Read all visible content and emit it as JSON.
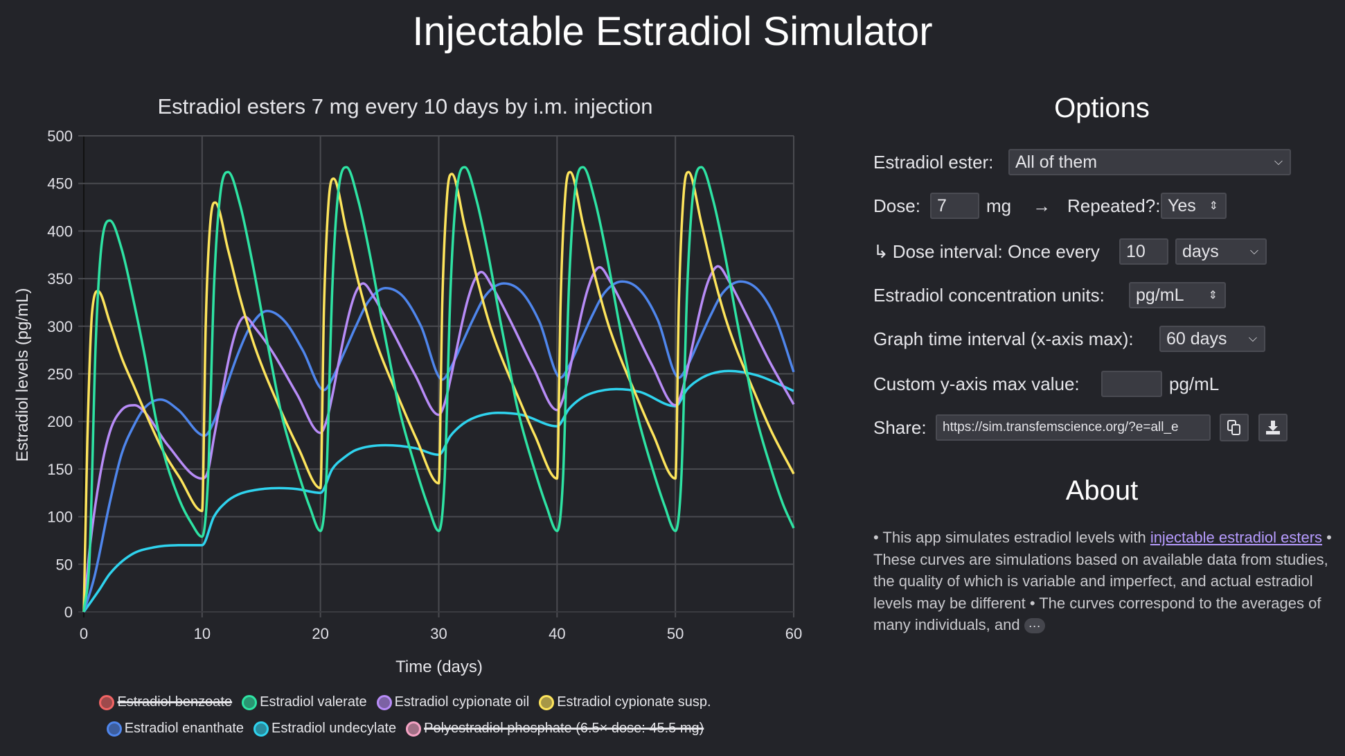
{
  "page": {
    "title": "Injectable Estradiol Simulator"
  },
  "options": {
    "heading": "Options",
    "ester_label": "Estradiol ester:",
    "ester_value": "All of them",
    "dose_label": "Dose:",
    "dose_value": "7",
    "dose_unit": "mg",
    "arrow": "→",
    "repeated_label": "Repeated?:",
    "repeated_value": "Yes",
    "interval_prefix": "↳",
    "interval_label": "Dose interval: Once every",
    "interval_value": "10",
    "interval_unit": "days",
    "units_label": "Estradiol concentration units:",
    "units_value": "pg/mL",
    "graph_label": "Graph time interval (x-axis max):",
    "graph_value": "60 days",
    "ymax_label": "Custom y-axis max value:",
    "ymax_value": "",
    "ymax_unit": "pg/mL",
    "share_label": "Share:",
    "share_url": "https://sim.transfemscience.org/?e=all_e",
    "copy_icon": "copy-icon",
    "download_icon": "download-icon"
  },
  "about": {
    "heading": "About",
    "text_1": "• This app simulates estradiol levels with ",
    "link": "injectable estradiol esters",
    "text_2": " • These curves are simulations based on available data from studies, the quality of which is variable and imperfect, and actual estradiol levels may be different • The curves correspond to the averages of many individuals, and ",
    "more": "···"
  },
  "chart_data": {
    "type": "line",
    "title": "Estradiol esters 7 mg every 10 days by i.m. injection",
    "xlabel": "Time (days)",
    "ylabel": "Estradiol levels (pg/mL)",
    "xlim": [
      0,
      60
    ],
    "ylim": [
      0,
      500
    ],
    "xticks": [
      "0",
      "10",
      "20",
      "30",
      "40",
      "50",
      "60"
    ],
    "yticks": [
      "0",
      "50",
      "100",
      "150",
      "200",
      "250",
      "300",
      "350",
      "400",
      "450",
      "500"
    ],
    "grid": true,
    "legend_position": "bottom",
    "series": [
      {
        "name": "Estradiol benzoate",
        "color": "#f06464",
        "hidden": true,
        "points": []
      },
      {
        "name": "Estradiol valerate",
        "color": "#2ee3a3",
        "hidden": false,
        "points": [
          [
            0,
            0
          ],
          [
            0.5,
            60
          ],
          [
            1,
            280
          ],
          [
            1.5,
            385
          ],
          [
            2.2,
            411
          ],
          [
            3.2,
            381
          ],
          [
            4.2,
            327
          ],
          [
            5.2,
            266
          ],
          [
            5.9,
            215
          ],
          [
            6.7,
            169
          ],
          [
            8.1,
            117
          ],
          [
            9.1,
            93
          ],
          [
            10,
            79
          ],
          [
            10.5,
            140
          ],
          [
            11,
            340
          ],
          [
            11.5,
            435
          ],
          [
            12.2,
            462
          ],
          [
            13.2,
            428
          ],
          [
            14.2,
            370
          ],
          [
            15.2,
            303
          ],
          [
            15.9,
            258
          ],
          [
            16.7,
            208
          ],
          [
            18.1,
            147
          ],
          [
            19.1,
            110
          ],
          [
            20,
            85
          ],
          [
            20.5,
            140
          ],
          [
            21,
            340
          ],
          [
            21.5,
            440
          ],
          [
            22.2,
            467
          ],
          [
            23.2,
            432
          ],
          [
            24.2,
            374
          ],
          [
            25.2,
            306
          ],
          [
            25.9,
            261
          ],
          [
            26.7,
            211
          ],
          [
            28.1,
            149
          ],
          [
            29.1,
            111
          ],
          [
            30,
            85
          ],
          [
            30.5,
            140
          ],
          [
            31,
            340
          ],
          [
            31.5,
            440
          ],
          [
            32.2,
            467
          ],
          [
            33.2,
            432
          ],
          [
            34.2,
            374
          ],
          [
            35.2,
            306
          ],
          [
            35.9,
            261
          ],
          [
            36.7,
            211
          ],
          [
            38.1,
            149
          ],
          [
            39.1,
            111
          ],
          [
            40,
            85
          ],
          [
            40.5,
            140
          ],
          [
            41,
            340
          ],
          [
            41.5,
            440
          ],
          [
            42.2,
            467
          ],
          [
            43.2,
            432
          ],
          [
            44.2,
            374
          ],
          [
            45.2,
            306
          ],
          [
            45.9,
            261
          ],
          [
            46.7,
            211
          ],
          [
            48.1,
            149
          ],
          [
            49.1,
            111
          ],
          [
            50,
            85
          ],
          [
            50.5,
            140
          ],
          [
            51,
            340
          ],
          [
            51.5,
            440
          ],
          [
            52.2,
            467
          ],
          [
            53.2,
            432
          ],
          [
            54.2,
            374
          ],
          [
            55.2,
            306
          ],
          [
            55.9,
            261
          ],
          [
            56.7,
            211
          ],
          [
            58.1,
            150
          ],
          [
            59.1,
            113
          ],
          [
            60,
            88
          ]
        ]
      },
      {
        "name": "Estradiol cypionate oil",
        "color": "#b88cf7",
        "hidden": false,
        "points": [
          [
            0,
            0
          ],
          [
            0.5,
            66
          ],
          [
            1.3,
            138
          ],
          [
            2.2,
            189
          ],
          [
            3.2,
            212
          ],
          [
            4.3,
            217
          ],
          [
            5.2,
            209
          ],
          [
            7.1,
            175
          ],
          [
            10,
            140
          ],
          [
            10.5,
            148
          ],
          [
            11,
            183
          ],
          [
            11.5,
            217
          ],
          [
            12,
            250
          ],
          [
            12.5,
            279
          ],
          [
            13,
            300
          ],
          [
            13.6,
            310
          ],
          [
            14.5,
            298
          ],
          [
            16,
            272
          ],
          [
            18,
            229
          ],
          [
            20,
            188
          ],
          [
            20.5,
            200
          ],
          [
            21,
            227
          ],
          [
            21.5,
            259
          ],
          [
            22,
            290
          ],
          [
            22.5,
            317
          ],
          [
            23,
            336
          ],
          [
            23.6,
            345
          ],
          [
            24.5,
            331
          ],
          [
            26,
            297
          ],
          [
            28,
            249
          ],
          [
            30,
            207
          ],
          [
            30.5,
            219
          ],
          [
            31,
            245
          ],
          [
            31.5,
            275
          ],
          [
            32,
            305
          ],
          [
            32.5,
            330
          ],
          [
            33,
            348
          ],
          [
            33.6,
            357
          ],
          [
            34.5,
            342
          ],
          [
            36,
            307
          ],
          [
            38,
            256
          ],
          [
            40,
            212
          ],
          [
            40.5,
            224
          ],
          [
            41,
            250
          ],
          [
            41.5,
            280
          ],
          [
            42,
            310
          ],
          [
            42.5,
            335
          ],
          [
            43,
            353
          ],
          [
            43.6,
            362
          ],
          [
            44.5,
            347
          ],
          [
            46,
            311
          ],
          [
            48,
            260
          ],
          [
            50,
            217
          ],
          [
            50.5,
            229
          ],
          [
            51,
            254
          ],
          [
            51.5,
            283
          ],
          [
            52,
            312
          ],
          [
            52.5,
            337
          ],
          [
            53,
            354
          ],
          [
            53.6,
            363
          ],
          [
            54.5,
            348
          ],
          [
            56,
            312
          ],
          [
            58,
            262
          ],
          [
            60,
            218
          ]
        ]
      },
      {
        "name": "Estradiol cypionate susp.",
        "color": "#fde45c",
        "hidden": false,
        "points": [
          [
            0,
            0
          ],
          [
            0.3,
            180
          ],
          [
            0.7,
            315
          ],
          [
            1.2,
            337
          ],
          [
            2.2,
            304
          ],
          [
            3.2,
            267
          ],
          [
            4.2,
            238
          ],
          [
            5,
            215
          ],
          [
            6.7,
            169
          ],
          [
            8.1,
            141
          ],
          [
            10,
            106
          ],
          [
            10.3,
            300
          ],
          [
            10.7,
            410
          ],
          [
            11.1,
            430
          ],
          [
            12.2,
            380
          ],
          [
            13.2,
            330
          ],
          [
            14.2,
            288
          ],
          [
            15,
            260
          ],
          [
            16.7,
            210
          ],
          [
            18.1,
            173
          ],
          [
            20,
            130
          ],
          [
            20.3,
            320
          ],
          [
            20.7,
            432
          ],
          [
            21.1,
            455
          ],
          [
            22.2,
            400
          ],
          [
            23.2,
            347
          ],
          [
            24.2,
            302
          ],
          [
            25,
            273
          ],
          [
            26.7,
            222
          ],
          [
            28.1,
            182
          ],
          [
            30,
            135
          ],
          [
            30.3,
            325
          ],
          [
            30.7,
            437
          ],
          [
            31.1,
            460
          ],
          [
            32.2,
            405
          ],
          [
            33.2,
            352
          ],
          [
            34.2,
            306
          ],
          [
            35,
            277
          ],
          [
            36.7,
            226
          ],
          [
            38.1,
            186
          ],
          [
            40,
            140
          ],
          [
            40.3,
            327
          ],
          [
            40.7,
            439
          ],
          [
            41.1,
            462
          ],
          [
            42.2,
            407
          ],
          [
            43.2,
            353
          ],
          [
            44.2,
            307
          ],
          [
            45,
            278
          ],
          [
            46.7,
            227
          ],
          [
            48.1,
            187
          ],
          [
            50,
            140
          ],
          [
            50.3,
            327
          ],
          [
            50.7,
            439
          ],
          [
            51.1,
            462
          ],
          [
            52.2,
            408
          ],
          [
            53.2,
            355
          ],
          [
            54.2,
            310
          ],
          [
            55,
            281
          ],
          [
            56.7,
            230
          ],
          [
            58.1,
            190
          ],
          [
            60,
            145
          ]
        ]
      },
      {
        "name": "Estradiol enanthate",
        "color": "#4f86ec",
        "hidden": false,
        "points": [
          [
            0,
            0
          ],
          [
            0.9,
            37
          ],
          [
            2.2,
            115
          ],
          [
            3.2,
            166
          ],
          [
            4.2,
            195
          ],
          [
            5.2,
            215
          ],
          [
            6.5,
            223
          ],
          [
            8,
            212
          ],
          [
            10.2,
            185
          ],
          [
            11,
            200
          ],
          [
            12,
            235
          ],
          [
            13,
            270
          ],
          [
            14,
            298
          ],
          [
            15.5,
            316
          ],
          [
            17,
            305
          ],
          [
            18.5,
            275
          ],
          [
            20.3,
            233
          ],
          [
            21,
            245
          ],
          [
            22,
            272
          ],
          [
            23,
            300
          ],
          [
            24,
            325
          ],
          [
            25.5,
            340
          ],
          [
            27,
            331
          ],
          [
            28.5,
            300
          ],
          [
            30.3,
            244
          ],
          [
            31,
            256
          ],
          [
            32,
            283
          ],
          [
            33,
            310
          ],
          [
            34,
            333
          ],
          [
            35.5,
            345
          ],
          [
            37,
            336
          ],
          [
            38.5,
            305
          ],
          [
            40.3,
            246
          ],
          [
            41,
            258
          ],
          [
            42,
            285
          ],
          [
            43,
            312
          ],
          [
            44,
            335
          ],
          [
            45.5,
            347
          ],
          [
            47,
            338
          ],
          [
            48.5,
            307
          ],
          [
            50.3,
            246
          ],
          [
            51,
            258
          ],
          [
            52,
            285
          ],
          [
            53,
            312
          ],
          [
            54,
            335
          ],
          [
            55.5,
            347
          ],
          [
            57,
            338
          ],
          [
            58.5,
            307
          ],
          [
            60,
            252
          ]
        ]
      },
      {
        "name": "Estradiol undecylate",
        "color": "#2fd3ee",
        "hidden": false,
        "points": [
          [
            0,
            0
          ],
          [
            1.3,
            23
          ],
          [
            2.2,
            40
          ],
          [
            4,
            60
          ],
          [
            6,
            68
          ],
          [
            8,
            70
          ],
          [
            10,
            70
          ],
          [
            11,
            100
          ],
          [
            12,
            115
          ],
          [
            13,
            123
          ],
          [
            14.5,
            128
          ],
          [
            16.5,
            130
          ],
          [
            18,
            129
          ],
          [
            20,
            125
          ],
          [
            21,
            150
          ],
          [
            22,
            162
          ],
          [
            23,
            170
          ],
          [
            25.5,
            175
          ],
          [
            28,
            172
          ],
          [
            30,
            165
          ],
          [
            31,
            185
          ],
          [
            32,
            197
          ],
          [
            33,
            204
          ],
          [
            35,
            209
          ],
          [
            37,
            207
          ],
          [
            40,
            195
          ],
          [
            41,
            213
          ],
          [
            42,
            224
          ],
          [
            43,
            230
          ],
          [
            45,
            234
          ],
          [
            47,
            231
          ],
          [
            50,
            216
          ],
          [
            51,
            234
          ],
          [
            52,
            244
          ],
          [
            53,
            250
          ],
          [
            54.5,
            253
          ],
          [
            57,
            248
          ],
          [
            60,
            232
          ]
        ]
      },
      {
        "name": "Polyestradiol phosphate (6.5× dose: 45.5 mg)",
        "color": "#f5a3c4",
        "hidden": true,
        "points": []
      }
    ]
  }
}
